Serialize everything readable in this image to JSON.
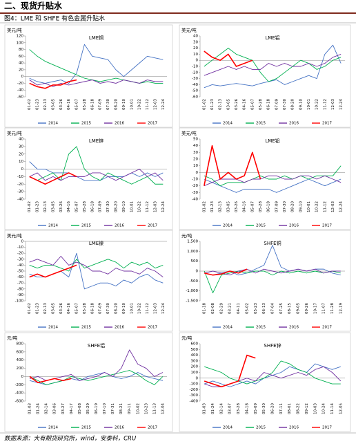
{
  "header": "二、现货升贴水",
  "figure_caption": "图4：LME 和 SHFE 有色金属升贴水",
  "source": "数据来源：大有期货研究所，wind，安泰科，CRU",
  "chart_data": [
    {
      "type": "line",
      "title": "LME铜",
      "unit": "美元/吨",
      "categories": [
        "01-02",
        "01-23",
        "02-13",
        "03-05",
        "03-26",
        "04-16",
        "05-07",
        "05-28",
        "06-18",
        "07-09",
        "07-30",
        "08-20",
        "09-10",
        "10-01",
        "10-22",
        "11-12",
        "12-03",
        "12-24"
      ],
      "ylim": [
        -60,
        120
      ],
      "yticks": [
        -60,
        -40,
        -20,
        0,
        20,
        40,
        60,
        80,
        100,
        120
      ],
      "series": [
        {
          "name": "2014",
          "color": "#4472c4",
          "values": [
            -5,
            -15,
            -20,
            -15,
            -10,
            -20,
            10,
            95,
            60,
            55,
            50,
            20,
            0,
            20,
            40,
            60,
            55,
            50
          ]
        },
        {
          "name": "2015",
          "color": "#00b050",
          "values": [
            80,
            60,
            45,
            35,
            25,
            15,
            5,
            -5,
            -10,
            -15,
            -10,
            -5,
            -10,
            -15,
            -20,
            -15,
            -20,
            -20
          ]
        },
        {
          "name": "2016",
          "color": "#7030a0",
          "values": [
            -10,
            -25,
            -20,
            -30,
            -20,
            -25,
            -20,
            -15,
            -10,
            -20,
            -15,
            -20,
            -10,
            -15,
            -20,
            -10,
            -15,
            -15
          ]
        },
        {
          "name": "2017",
          "color": "#ff0000",
          "values": [
            -20,
            -30,
            -35,
            -25,
            -25,
            -15,
            -10,
            null,
            null,
            null,
            null,
            null,
            null,
            null,
            null,
            null,
            null,
            null
          ]
        }
      ]
    },
    {
      "type": "line",
      "title": "LME铝",
      "unit": "美元/吨",
      "categories": [
        "01-02",
        "01-23",
        "02-13",
        "03-05",
        "03-26",
        "04-16",
        "05-07",
        "05-28",
        "06-18",
        "07-09",
        "07-30",
        "08-20",
        "09-10",
        "10-01",
        "10-22",
        "11-12",
        "12-03",
        "12-24"
      ],
      "ylim": [
        -60,
        40
      ],
      "yticks": [
        -60,
        -50,
        -40,
        -30,
        -20,
        -10,
        0,
        10,
        20,
        30,
        40
      ],
      "series": [
        {
          "name": "2014",
          "color": "#4472c4",
          "values": [
            -45,
            -40,
            -42,
            -40,
            -38,
            -40,
            -42,
            -38,
            -35,
            -32,
            -40,
            -35,
            -30,
            -25,
            -30,
            10,
            25,
            -5
          ]
        },
        {
          "name": "2015",
          "color": "#00b050",
          "values": [
            -10,
            0,
            10,
            20,
            10,
            5,
            0,
            -20,
            -35,
            -30,
            -20,
            -10,
            0,
            -5,
            -15,
            -10,
            0,
            5
          ]
        },
        {
          "name": "2016",
          "color": "#7030a0",
          "values": [
            -25,
            -20,
            -15,
            -10,
            -15,
            -10,
            -15,
            -15,
            -5,
            -10,
            -5,
            -10,
            -10,
            -5,
            -10,
            -5,
            5,
            10
          ]
        },
        {
          "name": "2017",
          "color": "#ff0000",
          "values": [
            15,
            5,
            0,
            10,
            -10,
            -5,
            0,
            null,
            null,
            null,
            null,
            null,
            null,
            null,
            null,
            null,
            null,
            null
          ]
        }
      ]
    },
    {
      "type": "line",
      "title": "LME锌",
      "unit": "美元/吨",
      "categories": [
        "01-02",
        "01-23",
        "02-13",
        "03-05",
        "03-26",
        "04-16",
        "05-07",
        "05-28",
        "06-18",
        "07-09",
        "07-30",
        "08-20",
        "09-10",
        "10-01",
        "10-22",
        "11-12",
        "12-03",
        "12-24"
      ],
      "ylim": [
        -40,
        40
      ],
      "yticks": [
        -40,
        -30,
        -20,
        -10,
        0,
        10,
        20,
        30,
        40
      ],
      "series": [
        {
          "name": "2014",
          "color": "#4472c4",
          "values": [
            10,
            0,
            0,
            -5,
            -5,
            -5,
            -10,
            -15,
            -15,
            -15,
            -10,
            -10,
            -10,
            -5,
            -10,
            -5,
            -10,
            -5
          ]
        },
        {
          "name": "2015",
          "color": "#00b050",
          "values": [
            -10,
            -15,
            -10,
            -5,
            -15,
            20,
            30,
            0,
            -10,
            -15,
            -5,
            -10,
            -15,
            -20,
            -15,
            -10,
            -20,
            -20
          ]
        },
        {
          "name": "2016",
          "color": "#7030a0",
          "values": [
            -10,
            -5,
            -15,
            -10,
            -15,
            -10,
            -10,
            -10,
            -5,
            -5,
            -10,
            -15,
            -10,
            -5,
            0,
            -10,
            -5,
            -15
          ]
        },
        {
          "name": "2017",
          "color": "#ff0000",
          "values": [
            -10,
            -15,
            -20,
            -15,
            -10,
            -5,
            -10,
            null,
            null,
            null,
            null,
            null,
            null,
            null,
            null,
            null,
            null,
            null
          ]
        }
      ]
    },
    {
      "type": "line",
      "title": "LME铅",
      "unit": "美元/吨",
      "categories": [
        "01-02",
        "01-23",
        "02-13",
        "03-05",
        "03-26",
        "04-16",
        "05-07",
        "05-28",
        "06-18",
        "07-09",
        "07-30",
        "08-20",
        "09-10",
        "10-01",
        "10-22",
        "11-12",
        "12-03",
        "12-24"
      ],
      "ylim": [
        -40,
        50
      ],
      "yticks": [
        -40,
        -30,
        -20,
        -10,
        0,
        10,
        20,
        30,
        40,
        50
      ],
      "series": [
        {
          "name": "2014",
          "color": "#4472c4",
          "values": [
            -10,
            -15,
            -20,
            -25,
            -30,
            -25,
            -25,
            -25,
            -25,
            -30,
            -25,
            -20,
            -15,
            -10,
            -15,
            -20,
            -15,
            -10
          ]
        },
        {
          "name": "2015",
          "color": "#00b050",
          "values": [
            -5,
            -10,
            -20,
            -15,
            -15,
            -15,
            -10,
            -5,
            -10,
            -10,
            -5,
            -10,
            -5,
            -10,
            -5,
            -5,
            -5,
            10
          ]
        },
        {
          "name": "2016",
          "color": "#7030a0",
          "values": [
            -20,
            -15,
            -10,
            -10,
            -10,
            -15,
            -10,
            -10,
            -5,
            -5,
            -10,
            -10,
            -5,
            -5,
            -10,
            -5,
            -10,
            -15
          ]
        },
        {
          "name": "2017",
          "color": "#ff0000",
          "values": [
            -20,
            40,
            -10,
            0,
            -10,
            -5,
            30,
            -10,
            null,
            null,
            null,
            null,
            null,
            null,
            null,
            null,
            null,
            null
          ]
        }
      ]
    },
    {
      "type": "line",
      "title": "LME镍",
      "unit": "美元/吨",
      "categories": [
        "01-02",
        "01-23",
        "02-13",
        "03-05",
        "03-26",
        "04-16",
        "05-07",
        "05-28",
        "06-18",
        "07-09",
        "07-30",
        "08-20",
        "09-10",
        "10-01",
        "10-22",
        "11-12",
        "12-03",
        "12-24"
      ],
      "ylim": [
        -100,
        0
      ],
      "yticks": [
        -100,
        -90,
        -80,
        -70,
        -60,
        -50,
        -40,
        -30,
        -20,
        -10,
        0
      ],
      "series": [
        {
          "name": "2014",
          "color": "#4472c4",
          "values": [
            -55,
            -60,
            -60,
            -55,
            -50,
            -60,
            -20,
            -80,
            -75,
            -70,
            -70,
            -75,
            -65,
            -70,
            -60,
            -55,
            -65,
            -70
          ]
        },
        {
          "name": "2015",
          "color": "#00b050",
          "values": [
            -40,
            -45,
            -40,
            -40,
            -45,
            -50,
            -30,
            -45,
            -40,
            -35,
            -30,
            -35,
            -45,
            -35,
            -40,
            -35,
            -45,
            -40
          ]
        },
        {
          "name": "2016",
          "color": "#7030a0",
          "values": [
            -35,
            -30,
            -35,
            -40,
            -25,
            -40,
            -35,
            -40,
            -50,
            -50,
            -55,
            -45,
            -50,
            -50,
            -55,
            -45,
            -50,
            -60
          ]
        },
        {
          "name": "2017",
          "color": "#ff0000",
          "values": [
            -60,
            -55,
            -60,
            -55,
            -50,
            -45,
            -40,
            null,
            null,
            null,
            null,
            null,
            null,
            null,
            null,
            null,
            null,
            null
          ]
        }
      ]
    },
    {
      "type": "line",
      "title": "SHFE铜",
      "unit": "元/吨",
      "categories": [
        "01-18",
        "02-08",
        "02-29",
        "03-21",
        "04-11",
        "05-02",
        "05-23",
        "06-13",
        "07-04",
        "07-25",
        "08-15",
        "09-05",
        "09-26",
        "10-17",
        "11-07",
        "11-28",
        "12-19"
      ],
      "ylim": [
        -1500,
        1500
      ],
      "yticks": [
        {
          "value": -1500,
          "label": "-1,500"
        },
        {
          "value": -1000,
          "label": "-1,000"
        },
        -500,
        0,
        500,
        {
          "value": 1000,
          "label": "1,000"
        },
        {
          "value": 1500,
          "label": "1,500"
        }
      ],
      "series": [
        {
          "name": "2014",
          "color": "#4472c4",
          "values": [
            -100,
            -200,
            -100,
            0,
            -200,
            -100,
            100,
            300,
            1300,
            200,
            0,
            100,
            0,
            100,
            100,
            -100,
            -200
          ]
        },
        {
          "name": "2015",
          "color": "#00b050",
          "values": [
            0,
            -1100,
            -200,
            -100,
            0,
            -100,
            0,
            0,
            -200,
            0,
            -100,
            0,
            -100,
            0,
            -100,
            0,
            -100
          ]
        },
        {
          "name": "2016",
          "color": "#7030a0",
          "values": [
            -100,
            0,
            -100,
            -200,
            0,
            100,
            -100,
            100,
            0,
            -100,
            0,
            100,
            0,
            100,
            -100,
            0,
            0
          ]
        },
        {
          "name": "2017",
          "color": "#ff0000",
          "values": [
            -100,
            -200,
            -150,
            0,
            -100,
            100,
            null,
            null,
            null,
            null,
            null,
            null,
            null,
            null,
            null,
            null,
            null
          ]
        }
      ]
    },
    {
      "type": "line",
      "title": "SHFE铝",
      "unit": "元/吨",
      "categories": [
        "01-03",
        "01-24",
        "02-14",
        "03-06",
        "03-27",
        "04-17",
        "05-08",
        "05-29",
        "06-19",
        "07-10",
        "07-31",
        "08-21",
        "09-11",
        "10-02",
        "10-23",
        "11-13",
        "12-04"
      ],
      "ylim": [
        -600,
        800
      ],
      "yticks": [
        -600,
        -400,
        -200,
        0,
        200,
        400,
        600,
        800
      ],
      "series": [
        {
          "name": "2014",
          "color": "#4472c4",
          "values": [
            -100,
            -150,
            -200,
            -150,
            -100,
            -50,
            -100,
            0,
            50,
            100,
            0,
            -50,
            0,
            100,
            0,
            -50,
            -100
          ]
        },
        {
          "name": "2015",
          "color": "#00b050",
          "values": [
            0,
            -100,
            -200,
            -150,
            -100,
            0,
            -50,
            -100,
            -50,
            0,
            50,
            100,
            150,
            50,
            -100,
            -200,
            0
          ]
        },
        {
          "name": "2016",
          "color": "#7030a0",
          "values": [
            -50,
            0,
            -100,
            -50,
            0,
            50,
            -100,
            -50,
            0,
            100,
            0,
            200,
            650,
            300,
            200,
            0,
            100
          ]
        },
        {
          "name": "2017",
          "color": "#ff0000",
          "values": [
            0,
            -150,
            -100,
            -50,
            -100,
            -50,
            null,
            null,
            null,
            null,
            null,
            null,
            null,
            null,
            null,
            null,
            null
          ]
        }
      ]
    },
    {
      "type": "line",
      "title": "SHFE锌",
      "unit": "元/吨",
      "categories": [
        "01-03",
        "01-24",
        "02-14",
        "03-07",
        "03-28",
        "04-18",
        "05-09",
        "05-30",
        "06-20",
        "07-11",
        "08-01",
        "08-22",
        "09-12",
        "10-03",
        "10-24",
        "11-14",
        "12-05"
      ],
      "ylim": [
        -400,
        600
      ],
      "yticks": [
        -400,
        -300,
        -200,
        -100,
        0,
        100,
        200,
        300,
        400,
        500,
        600
      ],
      "series": [
        {
          "name": "2014",
          "color": "#4472c4",
          "values": [
            -100,
            -50,
            -100,
            -150,
            -100,
            -50,
            -100,
            0,
            50,
            100,
            200,
            150,
            100,
            250,
            200,
            150,
            200
          ]
        },
        {
          "name": "2015",
          "color": "#00b050",
          "values": [
            200,
            150,
            100,
            0,
            -50,
            -100,
            -50,
            0,
            100,
            300,
            250,
            150,
            100,
            0,
            -50,
            -100,
            -100
          ]
        },
        {
          "name": "2016",
          "color": "#7030a0",
          "values": [
            -100,
            -150,
            -150,
            -100,
            -50,
            0,
            -50,
            100,
            50,
            0,
            50,
            100,
            50,
            150,
            200,
            100,
            -50
          ]
        },
        {
          "name": "2017",
          "color": "#ff0000",
          "values": [
            -50,
            -100,
            -150,
            -100,
            -50,
            400,
            350,
            null,
            null,
            null,
            null,
            null,
            null,
            null,
            null,
            null,
            null
          ]
        }
      ]
    }
  ]
}
